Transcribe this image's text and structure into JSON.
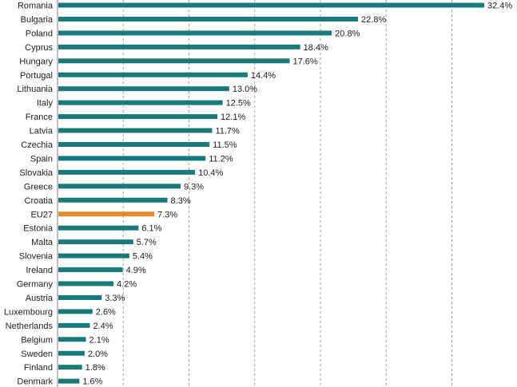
{
  "chart_data": {
    "type": "bar",
    "orientation": "horizontal",
    "title": "",
    "xlabel": "",
    "ylabel": "",
    "categories": [
      "Romania",
      "Bulgaria",
      "Poland",
      "Cyprus",
      "Hungary",
      "Portugal",
      "Lithuania",
      "Italy",
      "France",
      "Latvia",
      "Czechia",
      "Spain",
      "Slovakia",
      "Greece",
      "Croatia",
      "EU27",
      "Estonia",
      "Malta",
      "Slovenia",
      "Ireland",
      "Germany",
      "Austria",
      "Luxembourg",
      "Netherlands",
      "Belgium",
      "Sweden",
      "Finland",
      "Denmark"
    ],
    "values": [
      32.4,
      22.8,
      20.8,
      18.4,
      17.6,
      14.4,
      13.0,
      12.5,
      12.1,
      11.7,
      11.5,
      11.2,
      10.4,
      9.3,
      8.3,
      7.3,
      6.1,
      5.7,
      5.4,
      4.9,
      4.2,
      3.3,
      2.6,
      2.4,
      2.1,
      2.0,
      1.8,
      1.6
    ],
    "value_labels": [
      "32.4%",
      "22.8%",
      "20.8%",
      "18.4%",
      "17.6%",
      "14.4%",
      "13.0%",
      "12.5%",
      "12.1%",
      "11.7%",
      "11.5%",
      "11.2%",
      "10.4%",
      "9.3%",
      "8.3%",
      "7.3%",
      "6.1%",
      "5.7%",
      "5.4%",
      "4.9%",
      "4.2%",
      "3.3%",
      "2.6%",
      "2.4%",
      "2.1%",
      "2.0%",
      "1.8%",
      "1.6%"
    ],
    "highlight_category": "EU27",
    "xlim": [
      0,
      35
    ],
    "grid": true,
    "colors": {
      "bar": "#1a7a78",
      "highlight": "#e08a2c"
    }
  }
}
